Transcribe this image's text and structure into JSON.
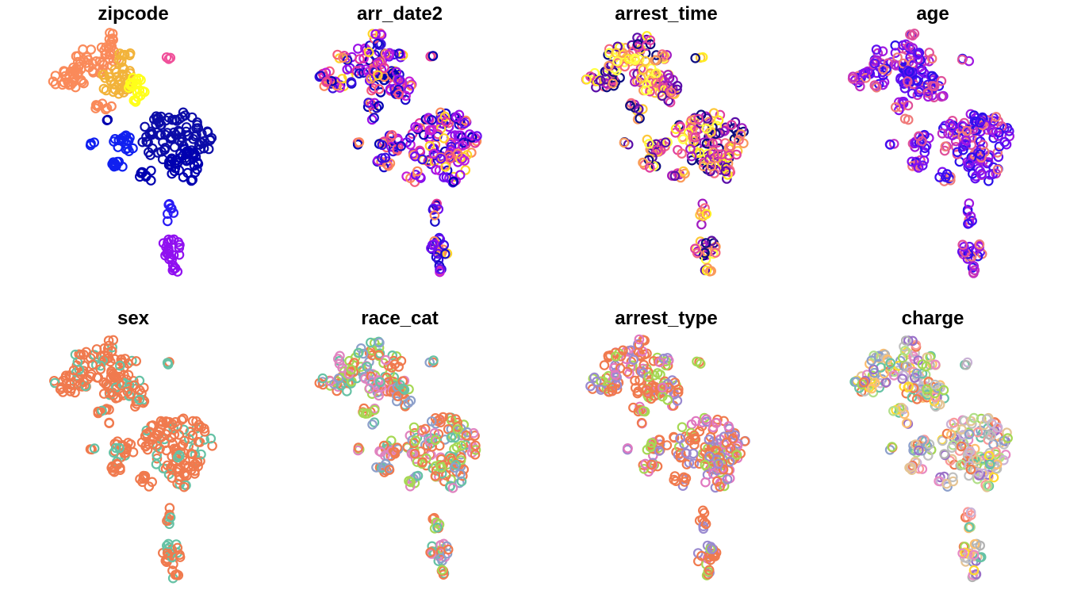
{
  "chart_data": [
    {
      "type": "scatter",
      "title": "zipcode",
      "palette": [
        "#fa8a5a",
        "#fa8a5a",
        "#f2b33a",
        "#fbd02a",
        "#ffff1a",
        "#0c0ca8",
        "#0000b0",
        "#1020f0",
        "#2a1cf5",
        "#9010f0",
        "#e02db0",
        "#f0509a"
      ],
      "axes": "none",
      "grid": false,
      "legend": "none"
    },
    {
      "type": "scatter",
      "title": "arr_date2",
      "palette": [
        "#0000b0",
        "#1a0cc9",
        "#3a10e0",
        "#6e0ef0",
        "#9a10e8",
        "#c41ed8",
        "#e2389a",
        "#f55c7a",
        "#fb8a5c",
        "#ffd42a"
      ],
      "axes": "none",
      "grid": false,
      "legend": "none"
    },
    {
      "type": "scatter",
      "title": "arrest_time",
      "palette": [
        "#0c0c80",
        "#5a0ea8",
        "#a21cc0",
        "#e040a0",
        "#f56a80",
        "#fa9a5a",
        "#fdc83a",
        "#ffee22",
        "#ffff44"
      ],
      "axes": "none",
      "grid": false,
      "legend": "none"
    },
    {
      "type": "scatter",
      "title": "age",
      "palette": [
        "#2a10e8",
        "#3a0ef0",
        "#6010f0",
        "#8010f0",
        "#a018e0",
        "#c030c0",
        "#e0509a",
        "#f07a7a"
      ],
      "axes": "none",
      "grid": false,
      "legend": "none"
    },
    {
      "type": "scatter",
      "title": "sex",
      "palette": [
        "#f07a4e",
        "#f07a4e",
        "#f07a4e",
        "#66c2a5"
      ],
      "axes": "none",
      "grid": false,
      "legend": "none"
    },
    {
      "type": "scatter",
      "title": "race_cat",
      "palette": [
        "#f07a4e",
        "#f07a4e",
        "#66c2a5",
        "#e084c0",
        "#8da0cb",
        "#a6d854"
      ],
      "axes": "none",
      "grid": false,
      "legend": "none"
    },
    {
      "type": "scatter",
      "title": "arrest_type",
      "palette": [
        "#f07a4e",
        "#e078c0",
        "#f07a4e",
        "#9a8ad0",
        "#a6d854"
      ],
      "axes": "none",
      "grid": false,
      "legend": "none"
    },
    {
      "type": "scatter",
      "title": "charge",
      "palette": [
        "#f07a4e",
        "#66c2a5",
        "#8da0cb",
        "#e78ac3",
        "#a6d854",
        "#ffd92f",
        "#c0c0c0",
        "#b3b3b3",
        "#fdbf6f",
        "#cab2d6",
        "#b2df8a",
        "#fb9a99",
        "#9a70c8",
        "#e5c494"
      ],
      "axes": "none",
      "grid": false,
      "legend": "none"
    }
  ]
}
